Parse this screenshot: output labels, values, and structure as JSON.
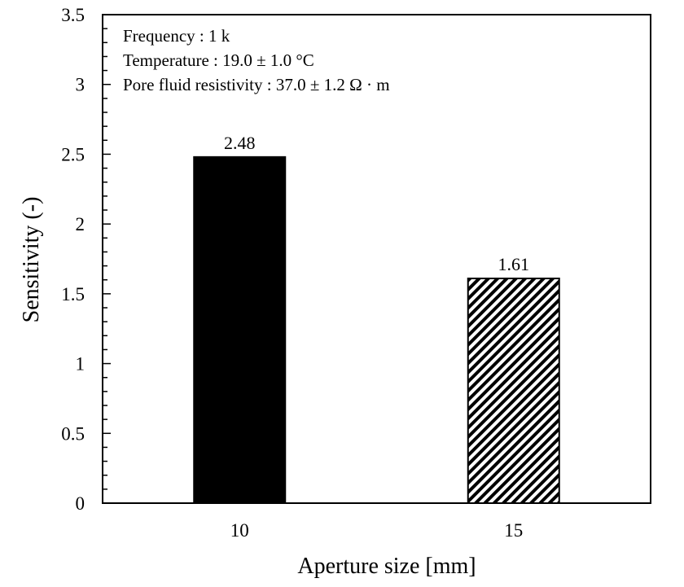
{
  "chart_data": {
    "type": "bar",
    "categories": [
      "10",
      "15"
    ],
    "values": [
      2.48,
      1.61
    ],
    "data_labels": [
      "2.48",
      "1.61"
    ],
    "bar_fills": [
      "solid-black",
      "diagonal-hatch"
    ],
    "title": "",
    "xlabel": "Aperture size [mm]",
    "ylabel": "Sensitivity (-)",
    "ylim": [
      0,
      3.5
    ],
    "yticks": [
      0,
      0.5,
      1,
      1.5,
      2,
      2.5,
      3,
      3.5
    ],
    "ytick_labels": [
      "0",
      "0.5",
      "1",
      "1.5",
      "2",
      "2.5",
      "3",
      "3.5"
    ],
    "grid": false,
    "legend": null,
    "annotations": [
      "Frequency : 1 k",
      "Temperature : 19.0 ± 1.0 °C",
      "Pore fluid resistivity : 37.0 ± 1.2 Ω · m"
    ],
    "colors": {
      "bar": "#000000",
      "hatch_bg": "#ffffff",
      "axis": "#000000"
    }
  }
}
